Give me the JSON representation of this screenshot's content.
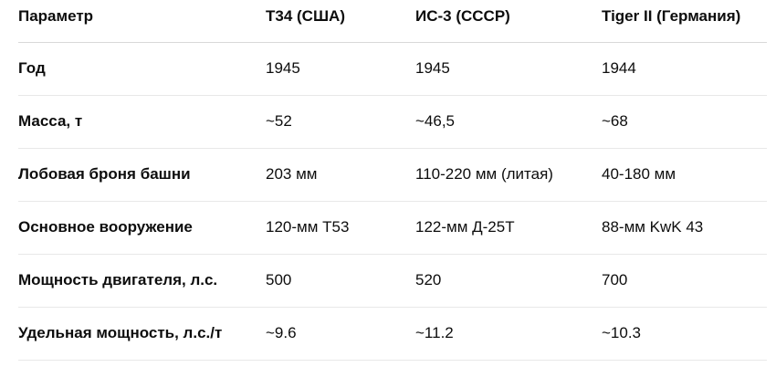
{
  "table": {
    "headers": [
      "Параметр",
      "T34 (США)",
      "ИС-3 (СССР)",
      "Tiger II (Германия)"
    ],
    "rows": [
      [
        "Год",
        "1945",
        "1945",
        "1944"
      ],
      [
        "Масса, т",
        "~52",
        "~46,5",
        "~68"
      ],
      [
        "Лобовая броня башни",
        "203 мм",
        "110-220 мм (литая)",
        "40-180 мм"
      ],
      [
        "Основное вооружение",
        "120-мм T53",
        "122-мм Д-25Т",
        "88-мм KwK 43"
      ],
      [
        "Мощность двигателя, л.с.",
        "500",
        "520",
        "700"
      ],
      [
        "Удельная мощность, л.с./т",
        "~9.6",
        "~11.2",
        "~10.3"
      ]
    ]
  }
}
